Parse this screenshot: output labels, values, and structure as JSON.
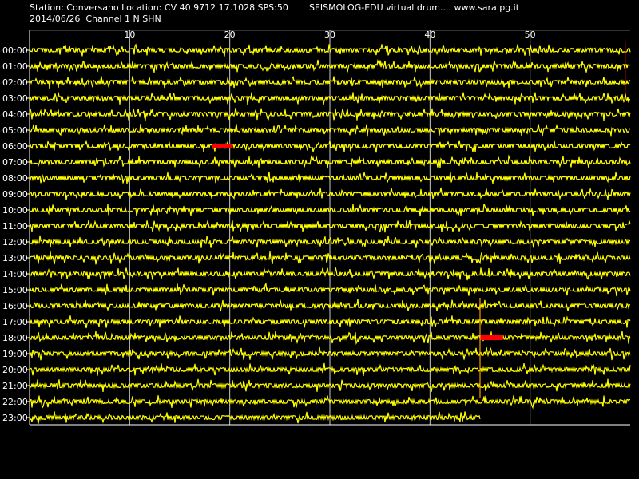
{
  "header": {
    "station_line": "Station: Conversano Location: CV 40.9712 17.1028 SPS:50",
    "title_right": "SEISMOLOG-EDU virtual drum.... www.sara.pg.it",
    "date_channel": "2014/06/26  Channel 1 N SHN"
  },
  "colors": {
    "background": "#000000",
    "trace": "#ffff00",
    "event": "#ff0000",
    "grid": "#ffffff",
    "text": "#ffffff"
  },
  "chart_data": {
    "type": "line",
    "title": "",
    "xlabel": "",
    "ylabel": "",
    "x_unit": "minutes",
    "x_range": [
      0,
      60
    ],
    "x_ticks": [
      10,
      20,
      30,
      40,
      50
    ],
    "grid": true,
    "hours": [
      "00:00",
      "01:00",
      "02:00",
      "03:00",
      "04:00",
      "05:00",
      "06:00",
      "07:00",
      "08:00",
      "09:00",
      "10:00",
      "11:00",
      "12:00",
      "13:00",
      "14:00",
      "15:00",
      "16:00",
      "17:00",
      "18:00",
      "19:00",
      "20:00",
      "21:00",
      "22:00",
      "23:00"
    ],
    "last_trace_end_minute": 45,
    "events": [
      {
        "hour": "06:00",
        "start_minute": 18.2,
        "end_minute": 20.3
      },
      {
        "hour": "18:00",
        "start_minute": 45.0,
        "end_minute": 47.3
      }
    ],
    "vertical_markers": [
      {
        "minute": 59.5,
        "from_hour": "00:00",
        "to_hour": "02:00"
      },
      {
        "minute": 45.0,
        "from_hour": "16:00",
        "to_hour": "21:00"
      }
    ]
  }
}
